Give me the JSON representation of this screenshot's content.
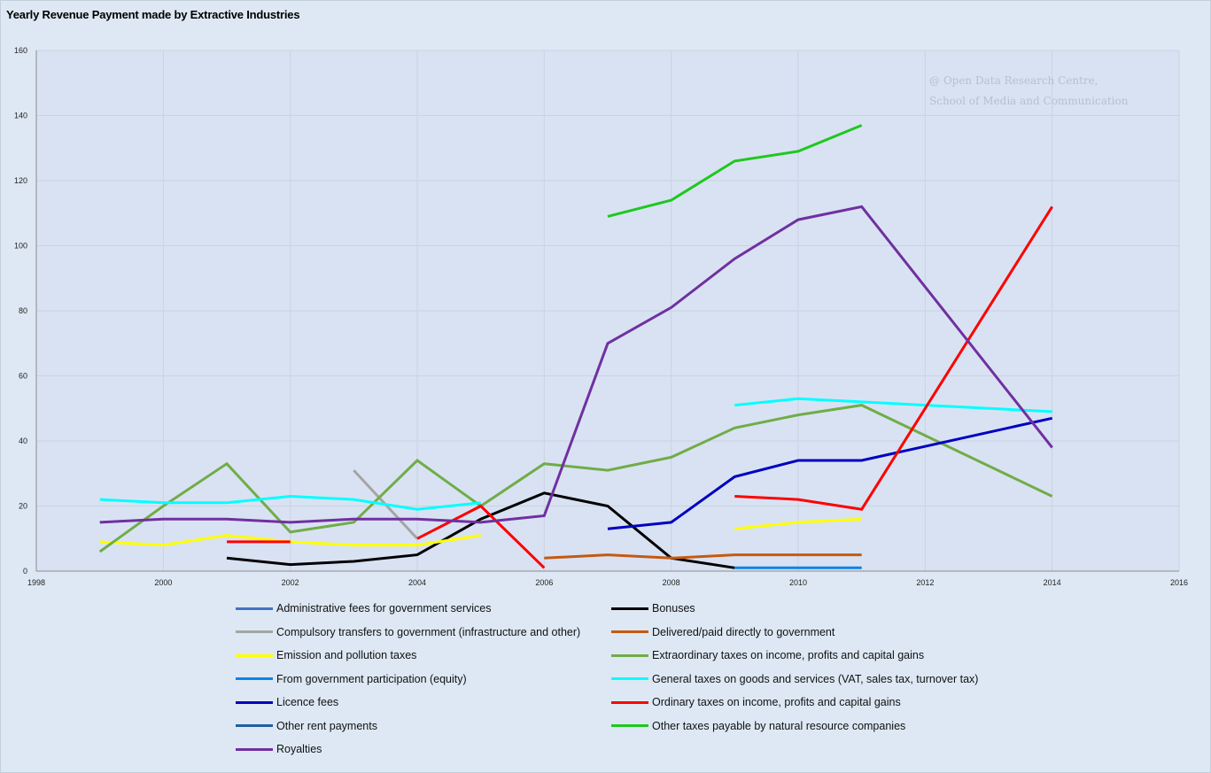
{
  "chart_data": {
    "type": "line",
    "title": "Yearly Revenue Payment made by Extractive Industries",
    "watermark": [
      "@ Open Data Research Centre,",
      "School of Media and Communication"
    ],
    "xlim": [
      1998,
      2016
    ],
    "ylim": [
      0,
      160
    ],
    "x_ticks": [
      1998,
      2000,
      2002,
      2004,
      2006,
      2008,
      2010,
      2012,
      2014,
      2016
    ],
    "y_ticks": [
      0,
      20,
      40,
      60,
      80,
      100,
      120,
      140,
      160
    ],
    "grid": true,
    "legend_position": "bottom",
    "series": [
      {
        "name": "Administrative fees for government services",
        "color": "#4472c4",
        "points": []
      },
      {
        "name": "Bonuses",
        "color": "#000000",
        "points": [
          [
            2001,
            4
          ],
          [
            2002,
            2
          ],
          [
            2003,
            3
          ],
          [
            2004,
            5
          ],
          [
            2005,
            16
          ],
          [
            2006,
            24
          ],
          [
            2007,
            20
          ],
          [
            2008,
            4
          ],
          [
            2009,
            1
          ]
        ]
      },
      {
        "name": "Compulsory transfers to government (infrastructure and other)",
        "color": "#a5a5a5",
        "points": [
          [
            2003,
            31
          ],
          [
            2004,
            10
          ]
        ]
      },
      {
        "name": "Delivered/paid directly to government",
        "color": "#c55a11",
        "points": [
          [
            2006,
            4
          ],
          [
            2007,
            5
          ],
          [
            2008,
            4
          ],
          [
            2009,
            5
          ],
          [
            2010,
            5
          ],
          [
            2011,
            5
          ]
        ]
      },
      {
        "name": "Emission and pollution taxes",
        "color": "#ffff00",
        "points": [
          [
            1999,
            9
          ],
          [
            2000,
            8
          ],
          [
            2001,
            11
          ],
          [
            2002,
            9
          ],
          [
            2003,
            8
          ],
          [
            2004,
            8
          ],
          [
            2005,
            11
          ],
          null,
          [
            2009,
            13
          ],
          [
            2010,
            15
          ],
          [
            2011,
            16
          ]
        ]
      },
      {
        "name": "Extraordinary taxes on income, profits and capital gains",
        "color": "#70ad47",
        "points": [
          [
            1999,
            6
          ],
          [
            2000,
            20
          ],
          [
            2001,
            33
          ],
          [
            2002,
            12
          ],
          [
            2003,
            15
          ],
          [
            2004,
            34
          ],
          [
            2005,
            20
          ],
          [
            2006,
            33
          ],
          [
            2007,
            31
          ],
          [
            2008,
            35
          ],
          [
            2009,
            44
          ],
          [
            2010,
            48
          ],
          [
            2011,
            51
          ],
          [
            2014,
            23
          ]
        ]
      },
      {
        "name": "From government participation (equity)",
        "color": "#0b84e8",
        "points": [
          [
            2009,
            1
          ],
          [
            2010,
            1
          ],
          [
            2011,
            1
          ]
        ]
      },
      {
        "name": "General taxes on goods and services (VAT, sales tax, turnover tax)",
        "color": "#00ffff",
        "points": [
          [
            1999,
            22
          ],
          [
            2000,
            21
          ],
          [
            2001,
            21
          ],
          [
            2002,
            23
          ],
          [
            2003,
            22
          ],
          [
            2004,
            19
          ],
          [
            2005,
            21
          ],
          null,
          [
            2009,
            51
          ],
          [
            2010,
            53
          ],
          [
            2011,
            52
          ],
          [
            2014,
            49
          ]
        ]
      },
      {
        "name": "Licence fees",
        "color": "#0000c0",
        "points": [
          [
            2007,
            13
          ],
          [
            2008,
            15
          ],
          [
            2009,
            29
          ],
          [
            2010,
            34
          ],
          [
            2011,
            34
          ],
          [
            2014,
            47
          ]
        ]
      },
      {
        "name": "Ordinary taxes on income, profits and capital gains",
        "color": "#ff0000",
        "points": [
          [
            2001,
            9
          ],
          [
            2002,
            9
          ],
          null,
          [
            2004,
            10
          ],
          [
            2005,
            20
          ],
          [
            2006,
            1
          ],
          null,
          [
            2009,
            23
          ],
          [
            2010,
            22
          ],
          [
            2011,
            19
          ],
          [
            2014,
            112
          ]
        ]
      },
      {
        "name": "Other rent payments",
        "color": "#1f5fa0",
        "points": []
      },
      {
        "name": "Other taxes payable by natural resource companies",
        "color": "#1ec81e",
        "points": [
          [
            2007,
            109
          ],
          [
            2008,
            114
          ],
          [
            2009,
            126
          ],
          [
            2010,
            129
          ],
          [
            2011,
            137
          ]
        ]
      },
      {
        "name": "Royalties",
        "color": "#7030a0",
        "points": [
          [
            1999,
            15
          ],
          [
            2000,
            16
          ],
          [
            2001,
            16
          ],
          [
            2002,
            15
          ],
          [
            2003,
            16
          ],
          [
            2004,
            16
          ],
          [
            2005,
            15
          ],
          [
            2006,
            17
          ],
          [
            2007,
            70
          ],
          [
            2008,
            81
          ],
          [
            2009,
            96
          ],
          [
            2010,
            108
          ],
          [
            2011,
            112
          ],
          [
            2014,
            38
          ]
        ]
      }
    ]
  }
}
